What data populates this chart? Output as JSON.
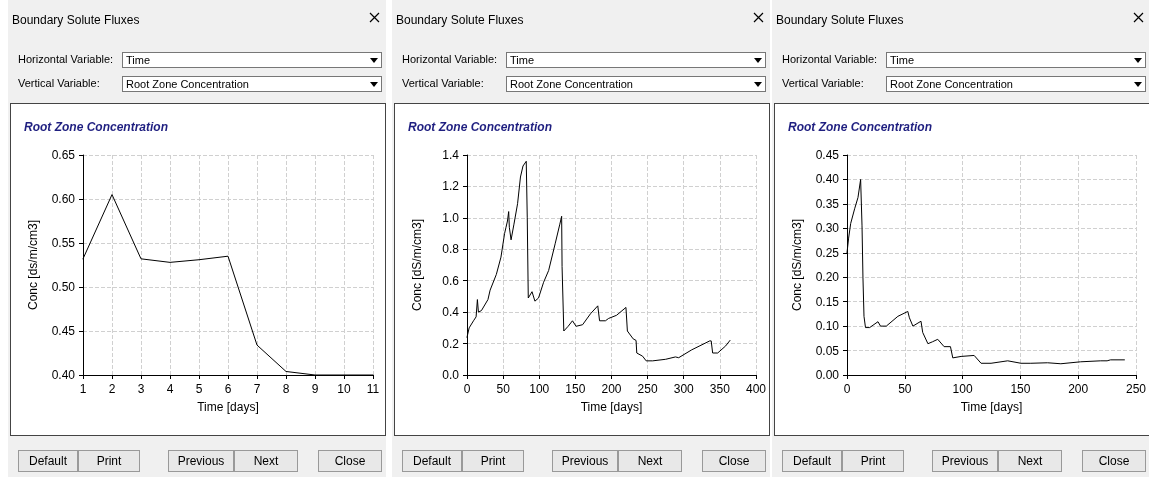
{
  "chart_data": [
    {
      "type": "line",
      "title": "Root Zone Concentration",
      "xlabel": "Time [days]",
      "ylabel": "Conc [ds/m/cm3]",
      "annotations": [
        "Boundary Solute Fluxes",
        "Horizontal Variable:",
        "Time",
        "Vertical Variable:",
        "Root Zone Concentration",
        "Default",
        "Print",
        "Previous",
        "Next",
        "Close"
      ],
      "x": [
        1,
        2,
        3,
        4,
        5,
        6,
        7,
        8,
        9,
        10,
        11
      ],
      "series": [
        {
          "color": "#000000",
          "values": [
            0.532,
            0.605,
            0.532,
            0.528,
            0.531,
            0.535,
            0.434,
            0.404,
            0.4,
            0.4,
            0.4
          ]
        }
      ],
      "xlim": [
        1,
        11
      ],
      "xticks": [
        1,
        2,
        3,
        4,
        5,
        6,
        7,
        8,
        9,
        10,
        11
      ],
      "ylim": [
        0.4,
        0.65
      ],
      "yticks": [
        {
          "value": 0.4,
          "label": "0.40"
        },
        {
          "value": 0.45,
          "label": "0.45"
        },
        {
          "value": 0.5,
          "label": "0.50"
        },
        {
          "value": 0.55,
          "label": "0.55"
        },
        {
          "value": 0.6,
          "label": "0.60"
        },
        {
          "value": 0.65,
          "label": "0.65"
        }
      ],
      "grid": true,
      "marker": "none",
      "line_style": "solid"
    },
    {
      "type": "line",
      "title": "Root Zone Concentration",
      "xlabel": "Time [days]",
      "ylabel": "Conc [dS/m/cm3]",
      "annotations": [
        "Boundary Solute Fluxes",
        "Horizontal Variable:",
        "Time",
        "Vertical Variable:",
        "Root Zone Concentration",
        "Default",
        "Print",
        "Previous",
        "Next",
        "Close"
      ],
      "x": [
        0,
        3,
        9,
        12.6,
        14.4,
        15.8,
        20,
        29,
        32,
        40.6,
        47,
        52,
        54,
        56,
        57.7,
        58.6,
        61,
        65,
        70,
        74,
        77.5,
        82,
        83.4,
        84.8,
        90,
        94,
        99,
        106,
        113,
        122,
        128.5,
        131,
        131.6,
        134,
        140,
        146,
        151,
        160,
        171,
        181,
        183.5,
        191.6,
        196,
        207,
        220,
        222,
        230,
        234,
        235,
        243,
        248,
        257,
        275,
        288.5,
        293,
        311,
        336,
        338,
        340,
        347,
        358,
        364
      ],
      "series": [
        {
          "color": "#000000",
          "values": [
            0.24,
            0.3,
            0.345,
            0.37,
            0.48,
            0.4,
            0.41,
            0.48,
            0.54,
            0.64,
            0.75,
            0.9,
            0.94,
            0.98,
            1.04,
            0.94,
            0.86,
            0.96,
            1.09,
            1.26,
            1.33,
            1.36,
            1.0,
            0.49,
            0.53,
            0.47,
            0.49,
            0.59,
            0.665,
            0.835,
            0.96,
            1.01,
            0.69,
            0.28,
            0.31,
            0.345,
            0.31,
            0.32,
            0.39,
            0.44,
            0.345,
            0.345,
            0.36,
            0.38,
            0.43,
            0.28,
            0.23,
            0.22,
            0.14,
            0.12,
            0.09,
            0.09,
            0.1,
            0.115,
            0.11,
            0.16,
            0.217,
            0.217,
            0.14,
            0.14,
            0.185,
            0.22
          ]
        }
      ],
      "xlim": [
        0,
        400
      ],
      "xticks": [
        0,
        50,
        100,
        150,
        200,
        250,
        300,
        350,
        400
      ],
      "ylim": [
        0,
        1.4
      ],
      "yticks": [
        {
          "value": 0,
          "label": "0.0"
        },
        0.2,
        0.4,
        0.6,
        0.8,
        {
          "value": 1,
          "label": "1.0"
        },
        1.2,
        1.4
      ],
      "grid": true,
      "marker": "none",
      "line_style": "solid"
    },
    {
      "type": "line",
      "title": "Root Zone Concentration",
      "xlabel": "Time [days]",
      "ylabel": "Conc [dS/m/cm3]",
      "annotations": [
        "Boundary Solute Fluxes",
        "Horizontal Variable:",
        "Time",
        "Vertical Variable:",
        "Root Zone Concentration",
        "Default",
        "Print",
        "Previous",
        "Next",
        "Close"
      ],
      "x": [
        0,
        1.4,
        3.2,
        6.6,
        9.5,
        11.8,
        13,
        13.8,
        14.7,
        16,
        19.6,
        26.8,
        29,
        34,
        44,
        52.6,
        54,
        57,
        64,
        65.5,
        70,
        74,
        78.5,
        84,
        89.5,
        91.5,
        98.7,
        110,
        116,
        124.6,
        139,
        150.5,
        159,
        173.5,
        185,
        202,
        219.5,
        225,
        228,
        240
      ],
      "series": [
        {
          "color": "#000000",
          "values": [
            0.25,
            0.28,
            0.31,
            0.34,
            0.363,
            0.4,
            0.305,
            0.2,
            0.12,
            0.097,
            0.097,
            0.109,
            0.1,
            0.1,
            0.12,
            0.13,
            0.117,
            0.1,
            0.11,
            0.087,
            0.064,
            0.068,
            0.073,
            0.058,
            0.058,
            0.035,
            0.038,
            0.04,
            0.024,
            0.024,
            0.029,
            0.024,
            0.024,
            0.025,
            0.023,
            0.027,
            0.029,
            0.029,
            0.031,
            0.031
          ]
        }
      ],
      "xlim": [
        0,
        250
      ],
      "xticks": [
        0,
        50,
        100,
        150,
        200,
        250
      ],
      "ylim": [
        0,
        0.45
      ],
      "yticks": [
        {
          "value": 0,
          "label": "0.00"
        },
        {
          "value": 0.05,
          "label": "0.05"
        },
        {
          "value": 0.1,
          "label": "0.10"
        },
        {
          "value": 0.15,
          "label": "0.15"
        },
        {
          "value": 0.2,
          "label": "0.20"
        },
        {
          "value": 0.25,
          "label": "0.25"
        },
        {
          "value": 0.3,
          "label": "0.30"
        },
        {
          "value": 0.35,
          "label": "0.35"
        },
        {
          "value": 0.4,
          "label": "0.40"
        },
        {
          "value": 0.45,
          "label": "0.45"
        }
      ],
      "grid": true,
      "marker": "none",
      "line_style": "solid"
    }
  ]
}
